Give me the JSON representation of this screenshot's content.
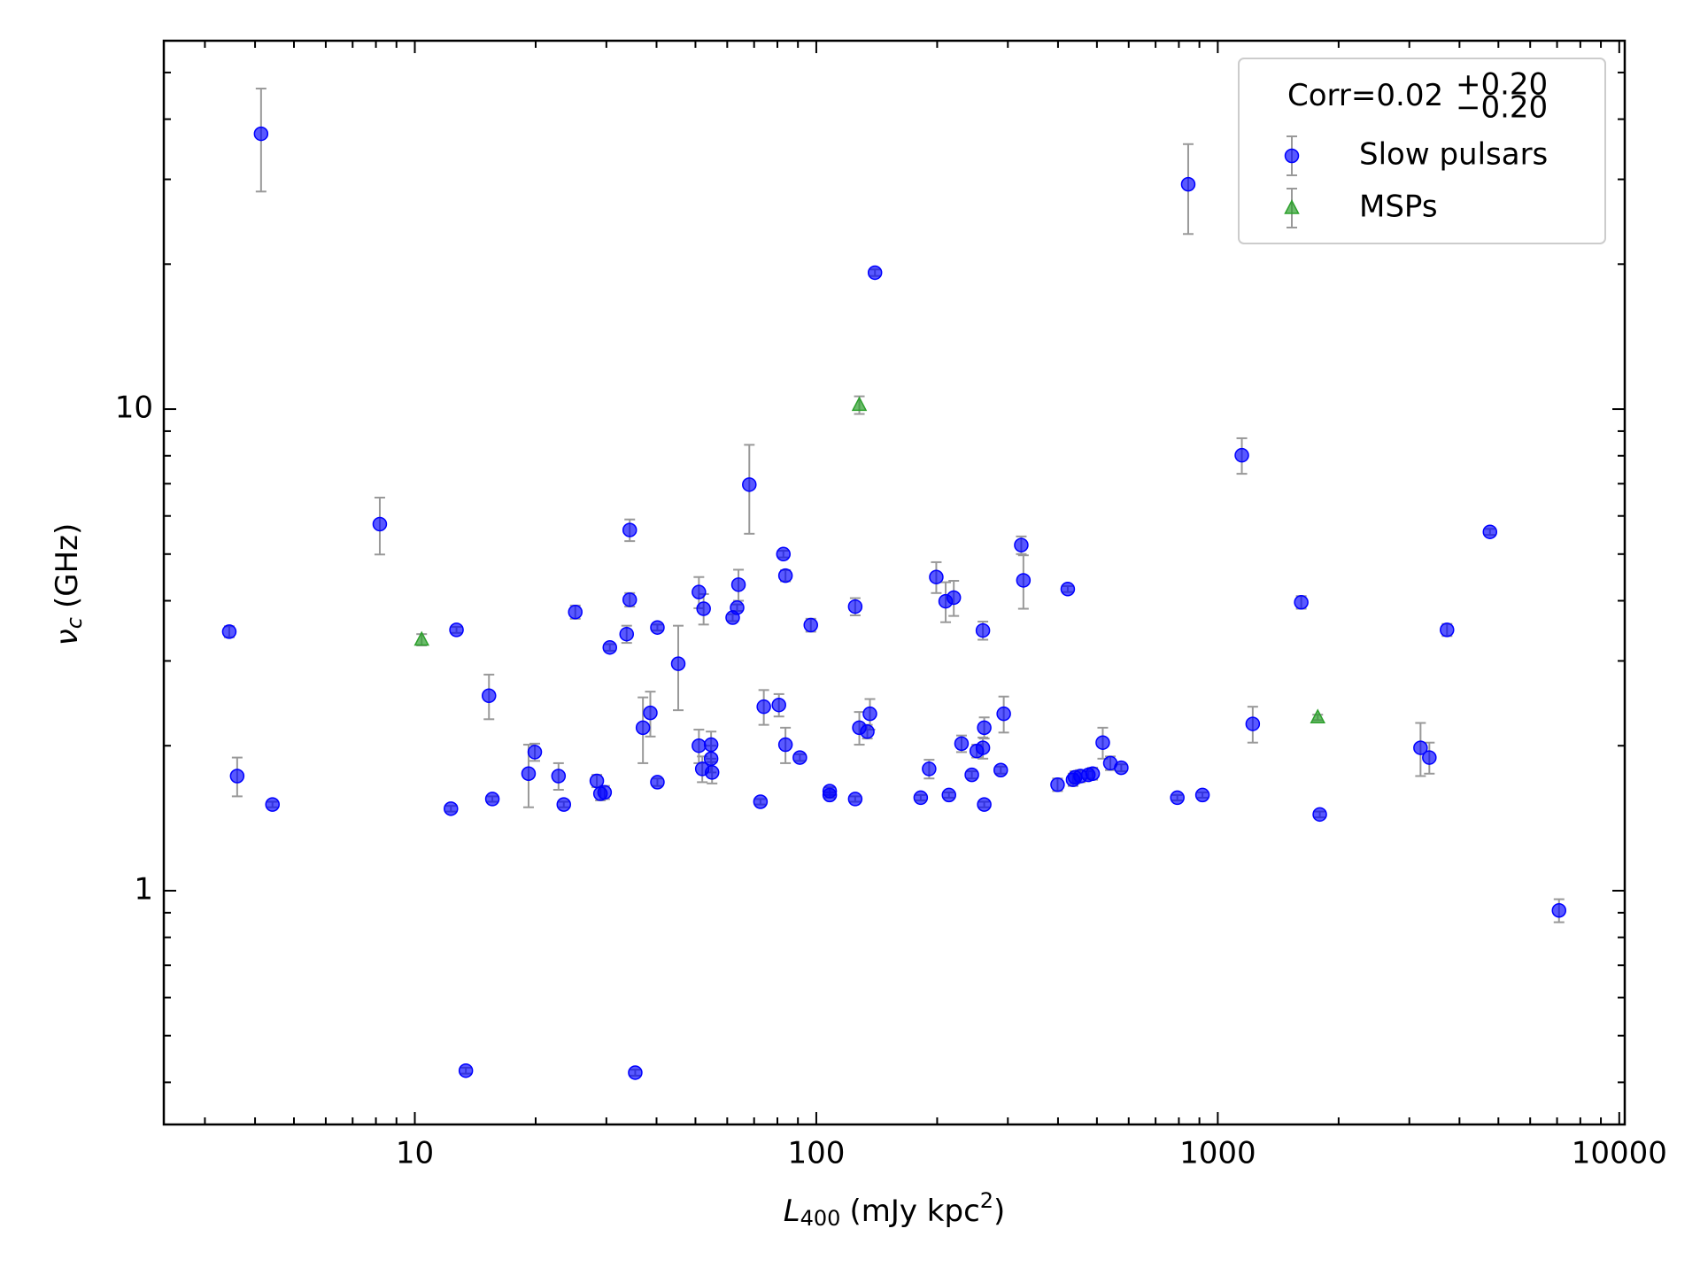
{
  "chart_data": {
    "type": "scatter",
    "x_label": {
      "symbol": "L",
      "sub": "400",
      "unit": "(mJy kpc",
      "sup": "2",
      "close": ")"
    },
    "y_label": {
      "symbol": "ν",
      "sub": "c",
      "unit": "(GHz)"
    },
    "xscale": "log",
    "yscale": "log",
    "xlim": [
      2.37,
      10320
    ],
    "ylim": [
      0.327,
      58.2
    ],
    "xticks": [
      10,
      100,
      1000,
      10000
    ],
    "yticks": [
      1,
      10
    ],
    "grid": false,
    "legend": "upper right",
    "legend_title": {
      "text": "Corr=0.02",
      "sup": "+0.20",
      "sub": "−0.20"
    },
    "error_color": "#999999",
    "series": [
      {
        "name": "Slow pulsars",
        "color": "#0000ff",
        "marker": "circle",
        "x": [
          3.45,
          4.14,
          3.61,
          4.42,
          8.18,
          12.3,
          12.7,
          13.4,
          15.3,
          15.6,
          19.2,
          19.9,
          22.8,
          23.5,
          25.1,
          28.4,
          29.0,
          29.7,
          30.6,
          33.7,
          34.3,
          34.3,
          35.4,
          37.0,
          38.6,
          40.2,
          40.2,
          45.3,
          51.0,
          51.0,
          52.4,
          52.0,
          54.7,
          54.7,
          55.0,
          61.9,
          63.5,
          64.0,
          68.1,
          72.6,
          74.0,
          80.7,
          82.8,
          83.8,
          83.8,
          91.0,
          96.9,
          108,
          108,
          125,
          125,
          128,
          134,
          136,
          140,
          182,
          191,
          199,
          210,
          214,
          220,
          230,
          244,
          251,
          260,
          260,
          262,
          262,
          288,
          293,
          324,
          328,
          399,
          423,
          436,
          441,
          455,
          476,
          488,
          517,
          540,
          575,
          793,
          844,
          916,
          1148,
          1222,
          1614,
          1795,
          3199,
          3365,
          3724,
          4764,
          7079
        ],
        "values": [
          3.45,
          37.3,
          1.73,
          1.51,
          5.77,
          1.48,
          3.48,
          0.423,
          2.54,
          1.55,
          1.75,
          1.94,
          1.73,
          1.51,
          3.79,
          1.69,
          1.59,
          1.6,
          3.2,
          3.41,
          5.61,
          4.02,
          0.419,
          2.18,
          2.34,
          3.52,
          1.68,
          2.96,
          4.17,
          2.0,
          3.85,
          1.79,
          2.01,
          1.88,
          1.76,
          3.69,
          3.87,
          4.32,
          6.97,
          1.53,
          2.41,
          2.43,
          5.0,
          4.51,
          2.01,
          1.89,
          3.56,
          1.61,
          1.58,
          1.55,
          3.89,
          2.18,
          2.14,
          2.33,
          19.2,
          1.56,
          1.79,
          4.48,
          3.99,
          1.58,
          4.06,
          2.02,
          1.74,
          1.95,
          1.98,
          3.47,
          2.18,
          1.51,
          1.78,
          2.33,
          5.22,
          4.41,
          1.66,
          4.23,
          1.7,
          1.72,
          1.73,
          1.74,
          1.75,
          2.03,
          1.84,
          1.8,
          1.56,
          29.3,
          1.58,
          8.02,
          2.22,
          3.97,
          1.44,
          1.98,
          1.89,
          3.48,
          5.56,
          0.91
        ],
        "errors": [
          0.09,
          9,
          0.16,
          0.02,
          0.78,
          0.02,
          0.05,
          0.006,
          0.27,
          0.02,
          0.26,
          0.08,
          0.11,
          0.02,
          0.12,
          0.05,
          0.05,
          0.05,
          0.05,
          0.14,
          0.29,
          0.13,
          0.006,
          0.34,
          0.25,
          0.05,
          0.03,
          0.59,
          0.31,
          0.16,
          0.28,
          0.11,
          0.13,
          0.12,
          0.09,
          0.06,
          0.06,
          0.32,
          1.46,
          0.02,
          0.2,
          0.13,
          0.08,
          0.12,
          0.17,
          0.03,
          0.11,
          0.03,
          0.02,
          0.02,
          0.16,
          0.17,
          0.07,
          0.17,
          0.3,
          0.02,
          0.08,
          0.33,
          0.38,
          0.02,
          0.34,
          0.08,
          0.03,
          0.06,
          0.1,
          0.15,
          0.11,
          0.02,
          0.03,
          0.2,
          0.22,
          0.56,
          0.05,
          0.06,
          0.05,
          0.05,
          0.05,
          0.03,
          0.05,
          0.15,
          0.06,
          0.03,
          0.02,
          6.2,
          0.02,
          0.68,
          0.19,
          0.12,
          0.02,
          0.25,
          0.14,
          0.1,
          0.08,
          0.05
        ]
      },
      {
        "name": "MSPs",
        "color": "#2ca02c",
        "marker": "triangle",
        "x": [
          10.4,
          128,
          1774
        ],
        "values": [
          3.32,
          10.2,
          2.29
        ],
        "errors": [
          0.09,
          0.43,
          0.03
        ]
      }
    ]
  }
}
